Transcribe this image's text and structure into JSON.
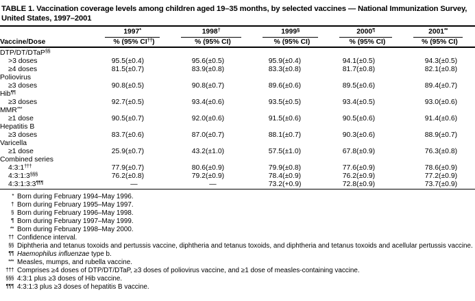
{
  "title": {
    "line1": "TABLE 1. Vaccination coverage levels among children aged 19–35 months, by selected vaccines — National Immunization Survey,",
    "line2": "United States, 1997–2001"
  },
  "columns": {
    "vaccine_dose": "Vaccine/Dose",
    "years": [
      {
        "year": "1997",
        "sup": "*",
        "sub_pre": "% (95% CI",
        "sub_sup": "††",
        "sub_post": ")"
      },
      {
        "year": "1998",
        "sup": "†",
        "sub_pre": "%  (95% CI",
        "sub_sup": "",
        "sub_post": ")"
      },
      {
        "year": "1999",
        "sup": "§",
        "sub_pre": "%  (95% CI",
        "sub_sup": "",
        "sub_post": ")"
      },
      {
        "year": "2000",
        "sup": "¶",
        "sub_pre": "%  (95% CI",
        "sub_sup": "",
        "sub_post": ")"
      },
      {
        "year": "2001",
        "sup": "**",
        "sub_pre": "% (95% CI",
        "sub_sup": "",
        "sub_post": ")"
      }
    ]
  },
  "rows": [
    {
      "type": "group",
      "label": "DTP/DT/DTaP",
      "sup": "§§"
    },
    {
      "type": "data",
      "label": ">3 doses",
      "values": [
        [
          "95.5",
          "(±0.4)"
        ],
        [
          "95.6",
          "(±0.5)"
        ],
        [
          "95.9",
          "(±0.4)"
        ],
        [
          "94.1",
          "(±0.5)"
        ],
        [
          "94.3",
          "(±0.5)"
        ]
      ]
    },
    {
      "type": "data",
      "label": "≥4 doses",
      "values": [
        [
          "81.5",
          "(±0.7)"
        ],
        [
          "83.9",
          "(±0.8)"
        ],
        [
          "83.3",
          "(±0.8)"
        ],
        [
          "81.7",
          "(±0.8)"
        ],
        [
          "82.1",
          "(±0.8)"
        ]
      ]
    },
    {
      "type": "group",
      "label": "Poliovirus",
      "sup": ""
    },
    {
      "type": "data",
      "label": "≥3 doses",
      "values": [
        [
          "90.8",
          "(±0.5)"
        ],
        [
          "90.8",
          "(±0.7)"
        ],
        [
          "89.6",
          "(±0.6)"
        ],
        [
          "89.5",
          "(±0.6)"
        ],
        [
          "89.4",
          "(±0.7)"
        ]
      ]
    },
    {
      "type": "group",
      "label": "Hib",
      "sup": "¶¶"
    },
    {
      "type": "data",
      "label": "≥3 doses",
      "values": [
        [
          "92.7",
          "(±0.5)"
        ],
        [
          "93.4",
          "(±0.6)"
        ],
        [
          "93.5",
          "(±0.5)"
        ],
        [
          "93.4",
          "(±0.5)"
        ],
        [
          "93.0",
          "(±0.6)"
        ]
      ]
    },
    {
      "type": "group",
      "label": "MMR",
      "sup": "***"
    },
    {
      "type": "data",
      "label": "≥1 dose",
      "values": [
        [
          "90.5",
          "(±0.7)"
        ],
        [
          "92.0",
          "(±0.6)"
        ],
        [
          "91.5",
          "(±0.6)"
        ],
        [
          "90.5",
          "(±0.6)"
        ],
        [
          "91.4",
          "(±0.6)"
        ]
      ]
    },
    {
      "type": "group",
      "label": "Hepatitis B",
      "sup": ""
    },
    {
      "type": "data",
      "label": "≥3 doses",
      "values": [
        [
          "83.7",
          "(±0.6)"
        ],
        [
          "87.0",
          "(±0.7)"
        ],
        [
          "88.1",
          "(±0.7)"
        ],
        [
          "90.3",
          "(±0.6)"
        ],
        [
          "88.9",
          "(±0.7)"
        ]
      ]
    },
    {
      "type": "group",
      "label": "Varicella",
      "sup": ""
    },
    {
      "type": "data",
      "label": "≥1 dose",
      "values": [
        [
          "25.9",
          "(±0.7)"
        ],
        [
          "43.2",
          "(±1.0)"
        ],
        [
          "57.5",
          "(±1.0)"
        ],
        [
          "67.8",
          "(±0.9)"
        ],
        [
          "76.3",
          "(±0.8)"
        ]
      ]
    },
    {
      "type": "group",
      "label": "Combined series",
      "sup": ""
    },
    {
      "type": "data",
      "label": "4:3:1",
      "sup": "†††",
      "values": [
        [
          "77.9",
          "(±0.7)"
        ],
        [
          "80.6",
          "(±0.9)"
        ],
        [
          "79.9",
          "(±0.8)"
        ],
        [
          "77.6",
          "(±0.9)"
        ],
        [
          "78.6",
          "(±0.9)"
        ]
      ]
    },
    {
      "type": "data",
      "label": "4:3:1:3",
      "sup": "§§§",
      "values": [
        [
          "76.2",
          "(±0.8)"
        ],
        [
          "79.2",
          "(±0.9)"
        ],
        [
          "78.4",
          "(±0.9)"
        ],
        [
          "76.2",
          "(±0.9)"
        ],
        [
          "77.2",
          "(±0.9)"
        ]
      ]
    },
    {
      "type": "data",
      "label": "4:3:1:3:3",
      "sup": "¶¶¶",
      "values": [
        [
          "—",
          ""
        ],
        [
          "—",
          ""
        ],
        [
          "73.2",
          "(+0.9)"
        ],
        [
          "72.8",
          "(±0.9)"
        ],
        [
          "73.7",
          "(±0.9)"
        ]
      ]
    }
  ],
  "footnotes": [
    {
      "sym": "*",
      "text": "Born during February 1994–May 1996."
    },
    {
      "sym": "†",
      "text": "Born during February 1995–May 1997."
    },
    {
      "sym": "§",
      "text": "Born during February 1996–May 1998."
    },
    {
      "sym": "¶",
      "text": "Born during February 1997–May 1999."
    },
    {
      "sym": "**",
      "text": "Born during February 1998–May 2000."
    },
    {
      "sym": "††",
      "text": "Confidence interval."
    },
    {
      "sym": "§§",
      "text": "Diphtheria and tetanus toxoids and pertussis vaccine, diphtheria and tetanus toxoids, and diphtheria and tetanus toxoids and acellular pertussis vaccine."
    },
    {
      "sym": "¶¶",
      "italic": "Haemophilus influenzae",
      "text": " type b."
    },
    {
      "sym": "***",
      "text": "Measles, mumps, and rubella vaccine."
    },
    {
      "sym": "†††",
      "text": "Comprises ≥4 doses of DTP/DT/DTaP, ≥3 doses of poliovirus vaccine, and ≥1 dose of measles-containing vaccine."
    },
    {
      "sym": "§§§",
      "text": "4:3:1 plus ≥3 doses of Hib vaccine."
    },
    {
      "sym": "¶¶¶",
      "text": "4:3:1:3 plus ≥3 doses of hepatitis B vaccine."
    }
  ]
}
